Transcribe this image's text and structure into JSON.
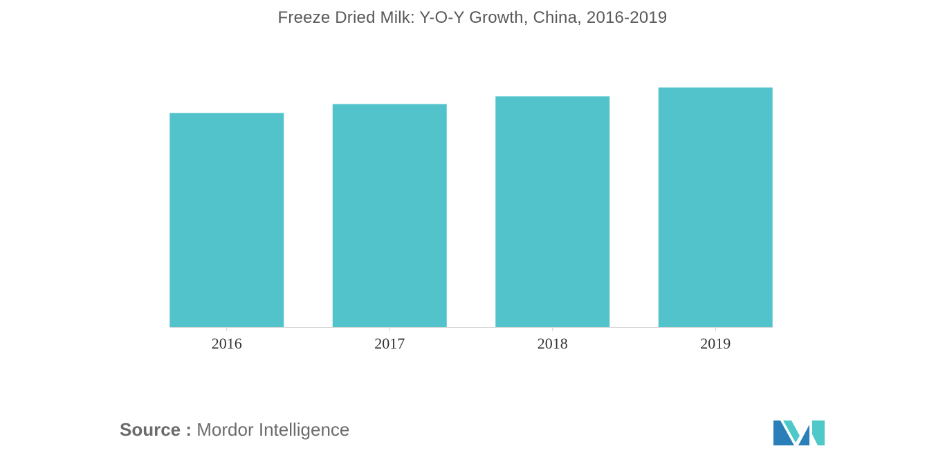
{
  "chart_data": {
    "type": "bar",
    "title": "Freeze Dried Milk: Y-O-Y Growth, China, 2016-2019",
    "categories": [
      "2016",
      "2017",
      "2018",
      "2019"
    ],
    "values": [
      3.62,
      3.77,
      3.9,
      4.05
    ],
    "xlabel": "",
    "ylabel": "",
    "ylim": [
      0,
      4.5
    ],
    "grid": false,
    "legend": "none",
    "bar_color": "#53c3cb"
  },
  "source": {
    "label": "Source :",
    "value": "Mordor Intelligence"
  },
  "colors": {
    "bar": "#53c3cb",
    "logo_dark": "#2a7fb8",
    "logo_light": "#4ec8c8"
  }
}
